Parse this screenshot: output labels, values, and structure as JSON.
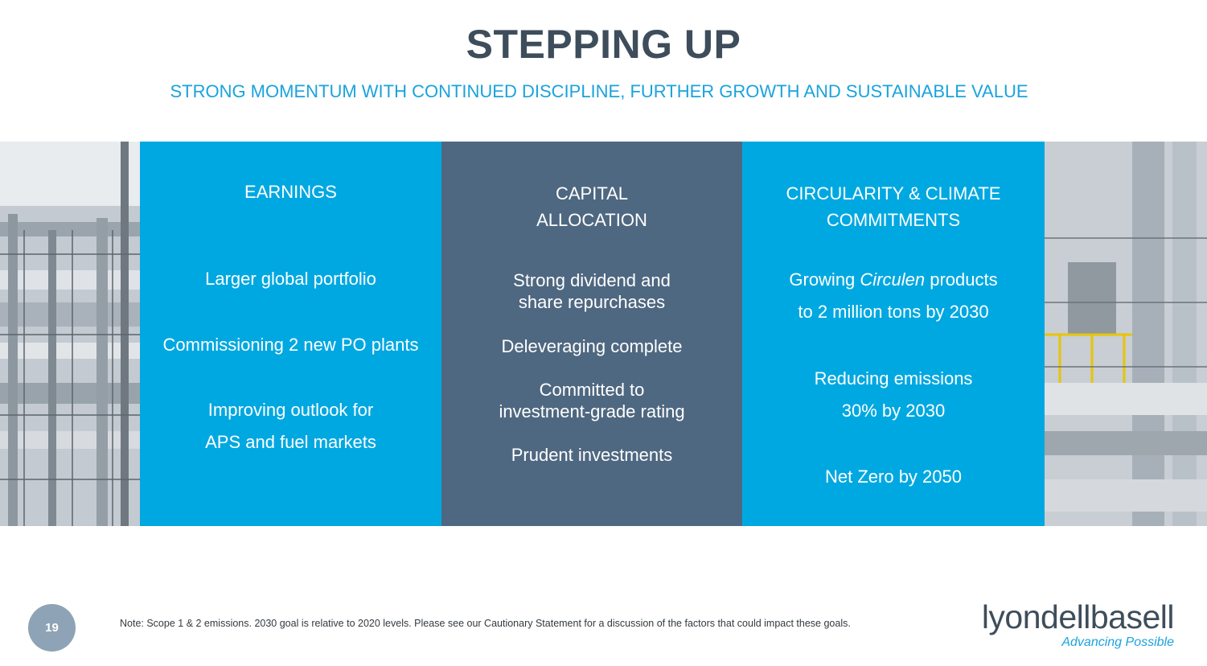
{
  "slide": {
    "title": "STEPPING UP",
    "subtitle": "STRONG MOMENTUM WITH CONTINUED DISCIPLINE, FURTHER GROWTH AND SUSTAINABLE VALUE"
  },
  "columns": {
    "earnings": {
      "header": "EARNINGS",
      "item1": "Larger global portfolio",
      "item2": "Commissioning 2 new PO plants",
      "item3_line1": "Improving outlook for",
      "item3_line2": "APS and fuel markets"
    },
    "capital": {
      "header_line1": "CAPITAL",
      "header_line2": "ALLOCATION",
      "item1_line1": "Strong dividend and",
      "item1_line2": "share repurchases",
      "item2": "Deleveraging complete",
      "item3_line1": "Committed to",
      "item3_line2": "investment-grade rating",
      "item4": "Prudent investments"
    },
    "circularity": {
      "header_line1": "CIRCULARITY & CLIMATE",
      "header_line2": "COMMITMENTS",
      "item1_pre": "Growing ",
      "item1_em": "Circulen",
      "item1_post": " products",
      "item1_line2": "to 2 million tons by 2030",
      "item2_line1": "Reducing emissions",
      "item2_line2": "30% by 2030",
      "item3": "Net Zero by 2050"
    }
  },
  "footer": {
    "page_number": "19",
    "note": "Note: Scope 1 & 2 emissions. 2030 goal is relative to 2020 levels. Please see our Cautionary Statement for a discussion of the factors that could impact these goals.",
    "logo_wordmark": "lyondellbasell",
    "logo_tagline": "Advancing Possible"
  },
  "colors": {
    "title": "#3e4d5b",
    "accent_blue": "#00a8e1",
    "slate_panel": "#4f6881",
    "page_circle": "#8ea3b5"
  }
}
